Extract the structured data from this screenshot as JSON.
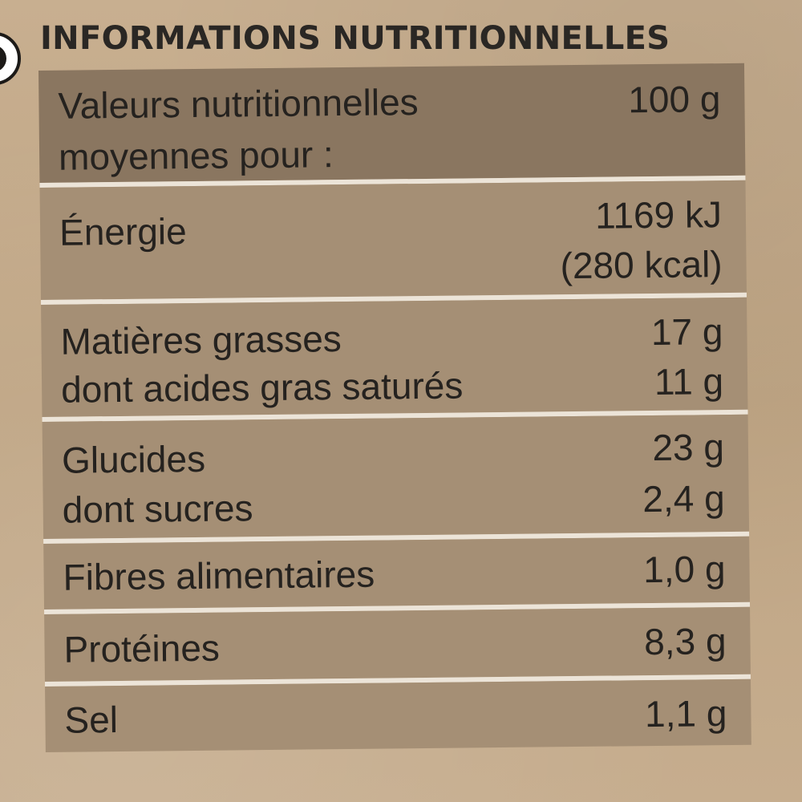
{
  "title": "INFORMATIONS NUTRITIONNELLES",
  "header": {
    "label_line1": "Valeurs nutritionnelles",
    "label_line2": "moyennes pour :",
    "value": "100 g"
  },
  "rows": [
    {
      "label": "Énergie",
      "value": "1169 kJ",
      "value2": "(280 kcal)"
    },
    {
      "label": "Matières grasses",
      "value": "17 g",
      "sub_label": "dont acides gras saturés",
      "sub_value": "11 g"
    },
    {
      "label": "Glucides",
      "value": "23 g",
      "sub_label": "dont sucres",
      "sub_value": "2,4 g"
    },
    {
      "label": "Fibres alimentaires",
      "value": "1,0 g"
    },
    {
      "label": "Protéines",
      "value": "8,3 g"
    },
    {
      "label": "Sel",
      "value": "1,1 g"
    }
  ]
}
